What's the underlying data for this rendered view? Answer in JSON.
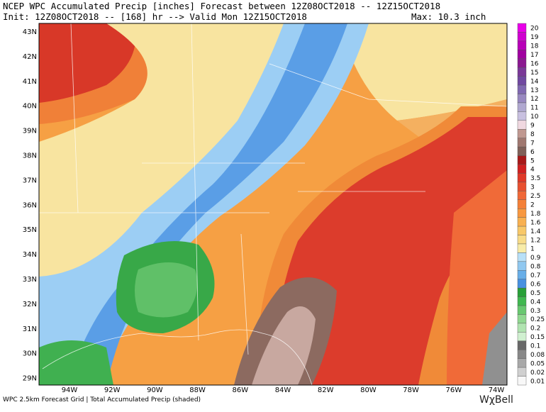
{
  "header": {
    "line1": "NCEP WPC Accumulated Precip [inches] Forecast between 12Z08OCT2018 -- 12Z15OCT2018",
    "line2": "Init: 12Z08OCT2018 -- [168] hr --> Valid Mon 12Z15OCT2018",
    "max": "Max: 10.3 inch"
  },
  "map": {
    "lat_labels": [
      "43N",
      "42N",
      "41N",
      "40N",
      "39N",
      "38N",
      "37N",
      "36N",
      "35N",
      "34N",
      "33N",
      "32N",
      "31N",
      "30N",
      "29N"
    ],
    "lon_labels": [
      "94W",
      "92W",
      "90W",
      "88W",
      "86W",
      "84W",
      "82W",
      "80W",
      "78W",
      "76W",
      "74W"
    ]
  },
  "legend": {
    "items": [
      {
        "label": "20",
        "color": "#e800e8"
      },
      {
        "label": "19",
        "color": "#d000d0"
      },
      {
        "label": "18",
        "color": "#b800b8"
      },
      {
        "label": "17",
        "color": "#a000a0"
      },
      {
        "label": "16",
        "color": "#8a1890"
      },
      {
        "label": "15",
        "color": "#7a3898"
      },
      {
        "label": "14",
        "color": "#7048a0"
      },
      {
        "label": "13",
        "color": "#8068b0"
      },
      {
        "label": "12",
        "color": "#9888c0"
      },
      {
        "label": "11",
        "color": "#b0a8d0"
      },
      {
        "label": "10",
        "color": "#c8c0e0"
      },
      {
        "label": "9",
        "color": "#f0d8e0"
      },
      {
        "label": "8",
        "color": "#c09890"
      },
      {
        "label": "7",
        "color": "#a07870"
      },
      {
        "label": "6",
        "color": "#806058"
      },
      {
        "label": "5",
        "color": "#a81818"
      },
      {
        "label": "4",
        "color": "#d02020"
      },
      {
        "label": "3.5",
        "color": "#e03828"
      },
      {
        "label": "3",
        "color": "#e85030"
      },
      {
        "label": "2.5",
        "color": "#f06838"
      },
      {
        "label": "2",
        "color": "#f48038"
      },
      {
        "label": "1.8",
        "color": "#f89840"
      },
      {
        "label": "1.6",
        "color": "#f8b050"
      },
      {
        "label": "1.4",
        "color": "#f8c868"
      },
      {
        "label": "1.2",
        "color": "#f8dc88"
      },
      {
        "label": "1",
        "color": "#f8eca8"
      },
      {
        "label": "0.9",
        "color": "#b8e0f8"
      },
      {
        "label": "0.8",
        "color": "#90c8f0"
      },
      {
        "label": "0.7",
        "color": "#68aee8"
      },
      {
        "label": "0.6",
        "color": "#4890e0"
      },
      {
        "label": "0.5",
        "color": "#28a038"
      },
      {
        "label": "0.4",
        "color": "#40b850"
      },
      {
        "label": "0.3",
        "color": "#68c870"
      },
      {
        "label": "0.25",
        "color": "#90d890"
      },
      {
        "label": "0.2",
        "color": "#b0e4b0"
      },
      {
        "label": "0.15",
        "color": "#d0f0d0"
      },
      {
        "label": "0.1",
        "color": "#686868"
      },
      {
        "label": "0.08",
        "color": "#888888"
      },
      {
        "label": "0.05",
        "color": "#a8a8a8"
      },
      {
        "label": "0.02",
        "color": "#d0d0d0"
      },
      {
        "label": "0.01",
        "color": "#f8f8f8"
      }
    ]
  },
  "footer": "WPC 2.5km Forecast Grid | Total Accumulated Precip (shaded)",
  "logo": "WχBell"
}
